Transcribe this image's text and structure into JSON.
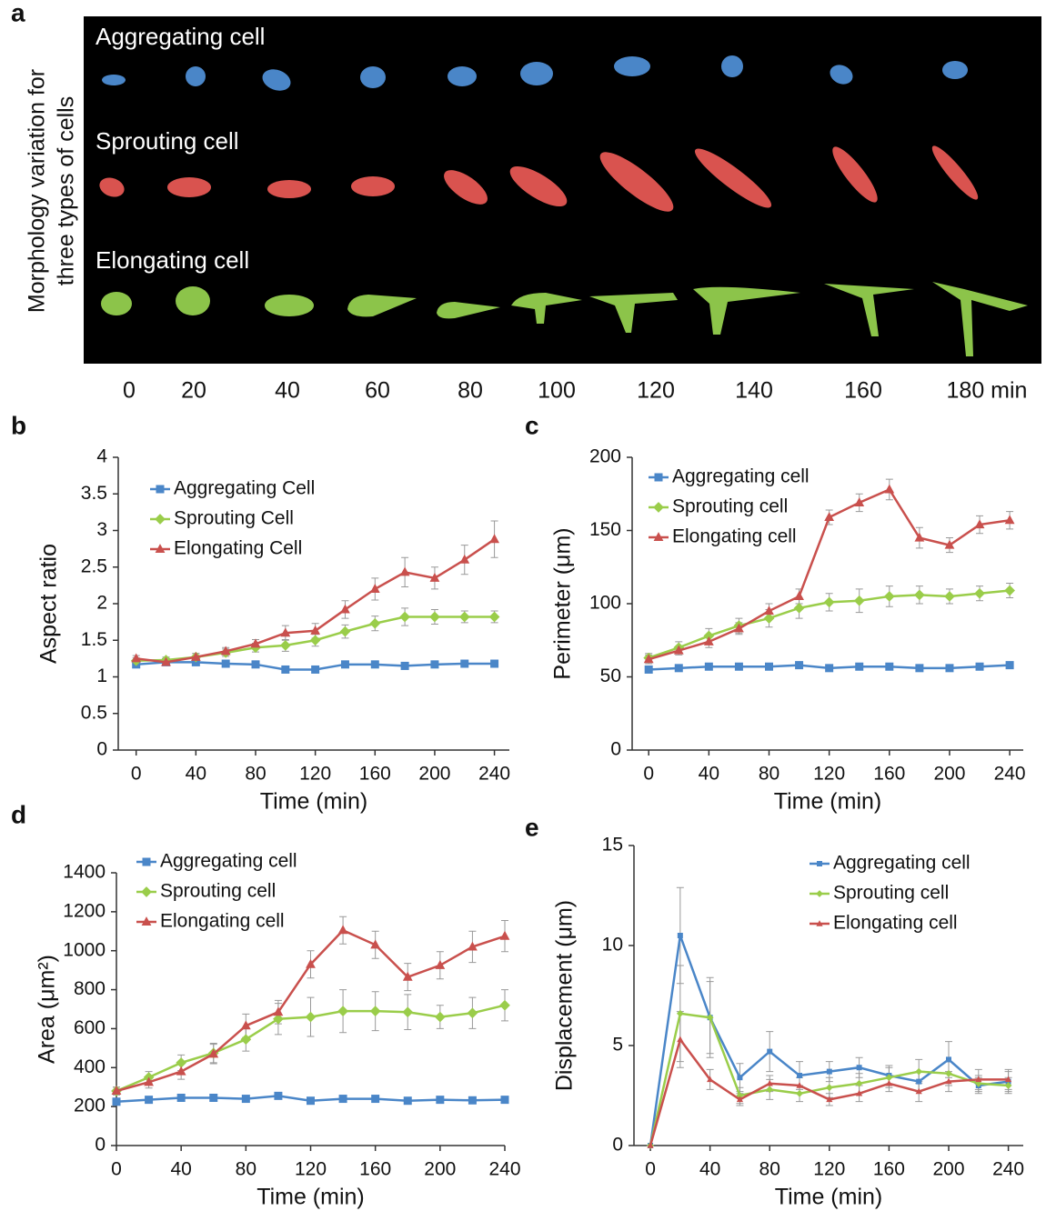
{
  "panel_a": {
    "label": "a",
    "ylabel": [
      "Morphology variation for",
      "three types of cells"
    ],
    "rows": [
      "Aggregating cell",
      "Sprouting cell",
      "Elongating cell"
    ],
    "time_labels": [
      "0",
      "20",
      "40",
      "60",
      "80",
      "100",
      "120",
      "140",
      "160",
      "180 min"
    ]
  },
  "chart_data": [
    {
      "type": "line",
      "panel": "b",
      "xlabel": "Time (min)",
      "ylabel": "Aspect ratio",
      "legend": "upper left",
      "x": [
        0,
        20,
        40,
        60,
        80,
        100,
        120,
        140,
        160,
        180,
        200,
        220,
        240
      ],
      "xlim": [
        -12,
        250
      ],
      "xticks": [
        0,
        40,
        80,
        120,
        160,
        200,
        240
      ],
      "ylim": [
        0,
        4
      ],
      "yticks": [
        0,
        0.5,
        1,
        1.5,
        2,
        2.5,
        3,
        3.5,
        4
      ],
      "series": [
        {
          "name": "Aggregating Cell",
          "color": "#4a86c8",
          "marker": "square",
          "values": [
            1.17,
            1.2,
            1.2,
            1.18,
            1.17,
            1.1,
            1.1,
            1.17,
            1.17,
            1.15,
            1.17,
            1.18,
            1.18
          ],
          "errors": [
            0.03,
            0.03,
            0.03,
            0.03,
            0.03,
            0.03,
            0.03,
            0.03,
            0.03,
            0.03,
            0.03,
            0.03,
            0.03
          ]
        },
        {
          "name": "Sprouting Cell",
          "color": "#9acd4a",
          "marker": "diamond",
          "values": [
            1.22,
            1.23,
            1.27,
            1.33,
            1.4,
            1.43,
            1.5,
            1.62,
            1.73,
            1.82,
            1.82,
            1.82,
            1.82
          ],
          "errors": [
            0.04,
            0.04,
            0.05,
            0.05,
            0.06,
            0.08,
            0.08,
            0.09,
            0.1,
            0.12,
            0.1,
            0.08,
            0.08
          ]
        },
        {
          "name": "Elongating Cell",
          "color": "#c9504d",
          "marker": "triangle",
          "values": [
            1.25,
            1.2,
            1.27,
            1.35,
            1.45,
            1.6,
            1.63,
            1.92,
            2.2,
            2.43,
            2.35,
            2.6,
            2.88
          ],
          "errors": [
            0.04,
            0.04,
            0.05,
            0.05,
            0.06,
            0.1,
            0.1,
            0.12,
            0.15,
            0.2,
            0.15,
            0.2,
            0.25
          ]
        }
      ]
    },
    {
      "type": "line",
      "panel": "c",
      "xlabel": "Time (min)",
      "ylabel": "Perimeter (μm)",
      "legend": "upper left",
      "x": [
        0,
        20,
        40,
        60,
        80,
        100,
        120,
        140,
        160,
        180,
        200,
        220,
        240
      ],
      "xlim": [
        -11,
        249
      ],
      "xticks": [
        0,
        40,
        80,
        120,
        160,
        200,
        240
      ],
      "ylim": [
        0,
        200
      ],
      "yticks": [
        0,
        50,
        100,
        150,
        200
      ],
      "series": [
        {
          "name": "Aggregating cell",
          "color": "#4a86c8",
          "marker": "square",
          "values": [
            55,
            56,
            57,
            57,
            57,
            58,
            56,
            57,
            57,
            56,
            56,
            57,
            58
          ],
          "errors": [
            1.5,
            1.5,
            1.5,
            1.5,
            1.5,
            1.5,
            1.5,
            1.5,
            1.5,
            1.5,
            1.5,
            1.5,
            1.5
          ]
        },
        {
          "name": "Sprouting cell",
          "color": "#9acd4a",
          "marker": "diamond",
          "values": [
            63,
            70,
            78,
            85,
            90,
            97,
            101,
            102,
            105,
            106,
            105,
            107,
            109
          ],
          "errors": [
            3,
            4,
            5,
            5,
            6,
            7,
            6,
            8,
            7,
            6,
            5,
            5,
            5
          ]
        },
        {
          "name": "Elongating cell",
          "color": "#c9504d",
          "marker": "triangle",
          "values": [
            62,
            68,
            74,
            83,
            95,
            105,
            159,
            169,
            178,
            145,
            140,
            154,
            157
          ],
          "errors": [
            3,
            3,
            4,
            4,
            5,
            5,
            5,
            6,
            7,
            7,
            5,
            6,
            6
          ]
        }
      ]
    },
    {
      "type": "line",
      "panel": "d",
      "xlabel": "Time (min)",
      "ylabel": "Area (μm²)",
      "legend": "upper left",
      "x": [
        0,
        20,
        40,
        60,
        80,
        100,
        120,
        140,
        160,
        180,
        200,
        220,
        240
      ],
      "xlim": [
        0,
        240
      ],
      "xticks": [
        0,
        40,
        80,
        120,
        160,
        200,
        240
      ],
      "ylim": [
        0,
        1400
      ],
      "yticks": [
        0,
        200,
        400,
        600,
        800,
        1000,
        1200,
        1400
      ],
      "series": [
        {
          "name": "Aggregating cell",
          "color": "#4a86c8",
          "marker": "square",
          "values": [
            225,
            235,
            245,
            245,
            240,
            255,
            230,
            240,
            240,
            230,
            235,
            232,
            235
          ],
          "errors": [
            10,
            10,
            10,
            10,
            10,
            10,
            10,
            10,
            10,
            10,
            10,
            10,
            10
          ]
        },
        {
          "name": "Sprouting cell",
          "color": "#9acd4a",
          "marker": "diamond",
          "values": [
            280,
            350,
            425,
            475,
            545,
            650,
            660,
            690,
            690,
            685,
            660,
            680,
            720
          ],
          "errors": [
            20,
            30,
            40,
            50,
            60,
            80,
            100,
            110,
            100,
            90,
            60,
            80,
            80
          ]
        },
        {
          "name": "Elongating cell",
          "color": "#c9504d",
          "marker": "triangle",
          "values": [
            280,
            325,
            380,
            470,
            615,
            685,
            930,
            1105,
            1030,
            865,
            925,
            1020,
            1075
          ],
          "errors": [
            20,
            30,
            40,
            50,
            60,
            60,
            70,
            70,
            70,
            70,
            70,
            80,
            80
          ]
        }
      ]
    },
    {
      "type": "line",
      "panel": "e",
      "xlabel": "Time (min)",
      "ylabel": "Displacement (μm)",
      "legend": "upper right",
      "x": [
        0,
        20,
        40,
        60,
        80,
        100,
        120,
        140,
        160,
        180,
        200,
        220,
        240
      ],
      "xlim": [
        -11,
        250
      ],
      "xticks": [
        0,
        40,
        80,
        120,
        160,
        200,
        240
      ],
      "ylim": [
        0,
        15
      ],
      "yticks": [
        0,
        5,
        10,
        15
      ],
      "series": [
        {
          "name": "Aggregating cell",
          "color": "#4a86c8",
          "marker": "square",
          "values": [
            0,
            10.5,
            6.4,
            3.4,
            4.7,
            3.5,
            3.7,
            3.9,
            3.5,
            3.2,
            4.3,
            3.0,
            3.2
          ],
          "errors": [
            0,
            2.4,
            2.0,
            0.7,
            1.0,
            0.7,
            0.5,
            0.5,
            0.5,
            0.5,
            0.9,
            0.4,
            0.5
          ]
        },
        {
          "name": "Sprouting cell",
          "color": "#9acd4a",
          "marker": "diamond",
          "values": [
            0,
            6.6,
            6.4,
            2.5,
            2.8,
            2.6,
            2.9,
            3.1,
            3.4,
            3.7,
            3.6,
            3.1,
            3.0
          ],
          "errors": [
            0,
            2.4,
            1.8,
            0.4,
            0.5,
            0.4,
            0.5,
            0.5,
            0.5,
            0.6,
            0.6,
            0.4,
            0.4
          ]
        },
        {
          "name": "Elongating cell",
          "color": "#c9504d",
          "marker": "triangle",
          "values": [
            0,
            5.3,
            3.3,
            2.3,
            3.1,
            3.0,
            2.3,
            2.6,
            3.1,
            2.7,
            3.2,
            3.3,
            3.3
          ],
          "errors": [
            0,
            1.4,
            0.5,
            0.3,
            0.4,
            0.4,
            0.3,
            0.4,
            0.4,
            0.5,
            0.5,
            0.5,
            0.5
          ]
        }
      ]
    }
  ]
}
